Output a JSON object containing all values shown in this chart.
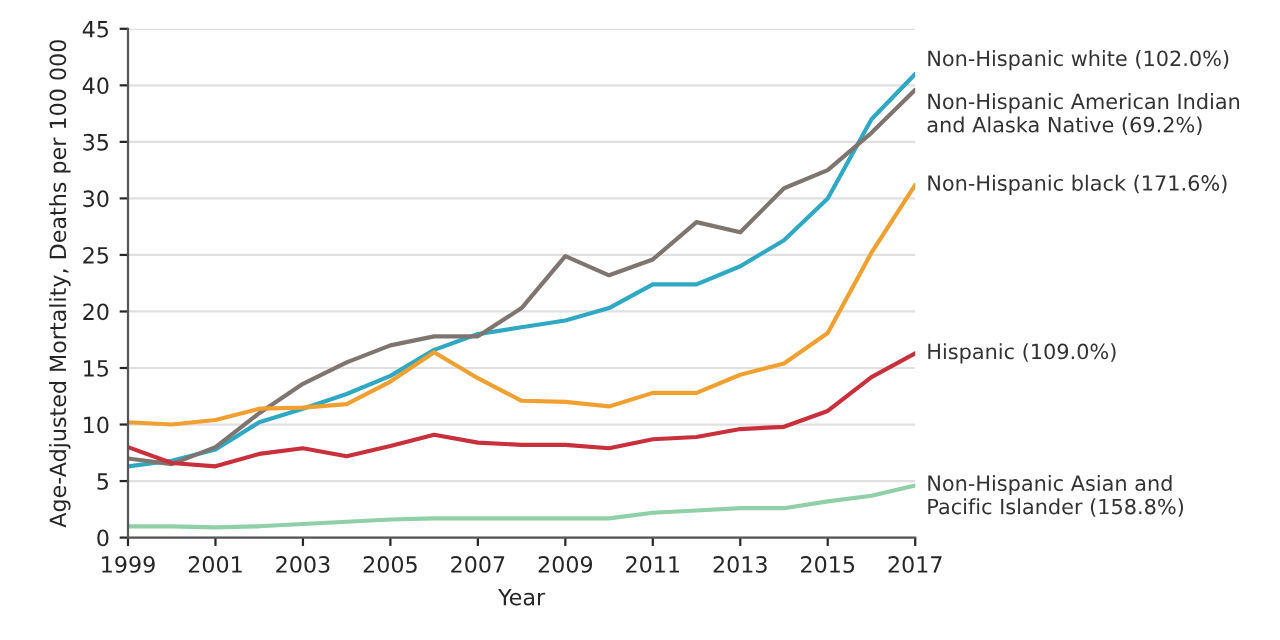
{
  "chart_data": {
    "type": "line",
    "xlabel": "Year",
    "ylabel": "Age-Adjusted Mortality, Deaths per 100 000",
    "x": [
      1999,
      2000,
      2001,
      2002,
      2003,
      2004,
      2005,
      2006,
      2007,
      2008,
      2009,
      2010,
      2011,
      2012,
      2013,
      2014,
      2015,
      2016,
      2017
    ],
    "series": [
      {
        "name": "Non-Hispanic white (102.0%)",
        "color": "#2fa8c4",
        "values": [
          6.3,
          6.8,
          7.8,
          10.2,
          11.4,
          12.7,
          14.3,
          16.6,
          18.0,
          18.6,
          19.2,
          20.3,
          22.4,
          22.4,
          24.0,
          26.3,
          30.0,
          37.0,
          41.0
        ]
      },
      {
        "name": "Non-Hispanic American Indian and Alaska Native (69.2%)",
        "color": "#7f7570",
        "values": [
          7.0,
          6.5,
          8.0,
          11.0,
          13.6,
          15.5,
          17.0,
          17.8,
          17.8,
          20.3,
          24.9,
          23.2,
          24.6,
          27.9,
          27.0,
          30.9,
          32.5,
          35.8,
          39.6
        ]
      },
      {
        "name": "Non-Hispanic black (171.6%)",
        "color": "#f0a030",
        "values": [
          10.2,
          10.0,
          10.4,
          11.4,
          11.5,
          11.8,
          13.8,
          16.4,
          14.1,
          12.1,
          12.0,
          11.6,
          12.8,
          12.8,
          14.4,
          15.4,
          18.1,
          25.2,
          31.2
        ]
      },
      {
        "name": "Hispanic (109.0%)",
        "color": "#c8303c",
        "values": [
          8.0,
          6.6,
          6.3,
          7.4,
          7.9,
          7.2,
          8.1,
          9.1,
          8.4,
          8.2,
          8.2,
          7.9,
          8.7,
          8.9,
          9.6,
          9.8,
          11.2,
          14.2,
          16.3
        ]
      },
      {
        "name": "Non-Hispanic Asian and Pacific Islander (158.8%)",
        "color": "#8fd0a8",
        "values": [
          1.0,
          1.0,
          0.9,
          1.0,
          1.2,
          1.4,
          1.6,
          1.7,
          1.7,
          1.7,
          1.7,
          1.7,
          2.2,
          2.4,
          2.6,
          2.6,
          3.2,
          3.7,
          4.6
        ]
      }
    ],
    "xlim": [
      1999,
      2017
    ],
    "xticks": [
      1999,
      2001,
      2003,
      2005,
      2007,
      2009,
      2011,
      2013,
      2015,
      2017
    ],
    "ylim": [
      0,
      45
    ],
    "yticks": [
      0,
      5,
      10,
      15,
      20,
      25,
      30,
      35,
      40,
      45
    ],
    "grid": "y",
    "legend": false,
    "marker": "none",
    "line_style": "solid"
  }
}
